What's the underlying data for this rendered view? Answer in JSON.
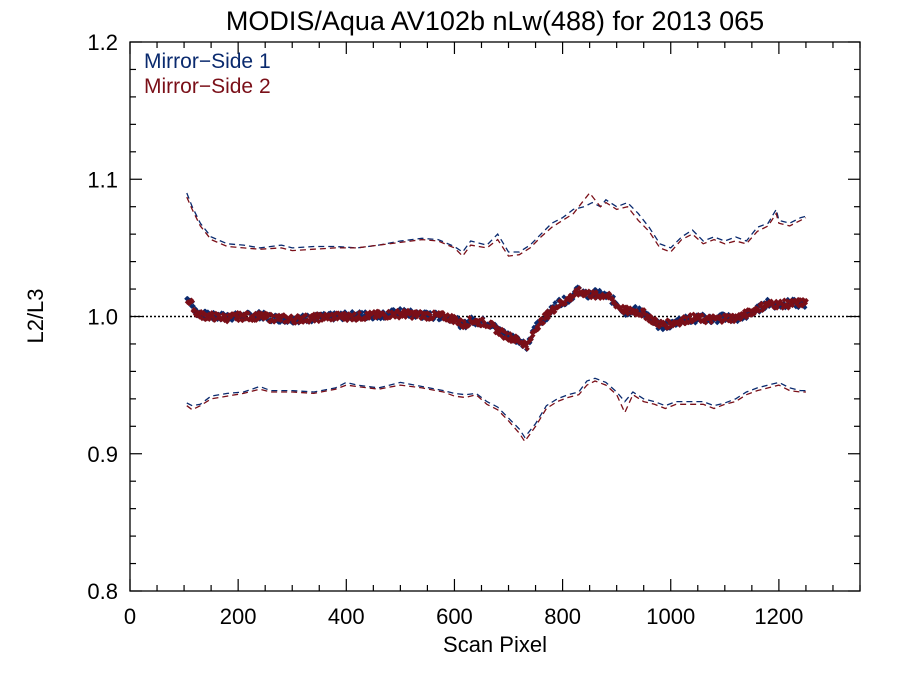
{
  "chart_data": {
    "type": "scatter",
    "title": "MODIS/Aqua AV102b nLw(488) for 2013 065",
    "xlabel": "Scan Pixel",
    "ylabel": "L2/L3",
    "xlim": [
      0,
      1350
    ],
    "ylim": [
      0.8,
      1.2
    ],
    "x_ticks": [
      0,
      200,
      400,
      600,
      800,
      1000,
      1200
    ],
    "x_tick_labels": [
      "0",
      "200",
      "400",
      "600",
      "800",
      "1000",
      "1200"
    ],
    "y_ticks": [
      0.8,
      0.9,
      1.0,
      1.1,
      1.2
    ],
    "y_tick_labels": [
      "0.8",
      "0.9",
      "1.0",
      "1.1",
      "1.2"
    ],
    "reference_line": {
      "y": 1.0,
      "style": "dotted",
      "color": "#000000"
    },
    "legend_position": "top-left",
    "grid": false,
    "series": [
      {
        "name": "Mirror−Side 1",
        "color": "#0a2a6e",
        "mean": [
          [
            105,
            1.013
          ],
          [
            112,
            1.012
          ],
          [
            120,
            1.004
          ],
          [
            130,
            1.002
          ],
          [
            150,
            1.0
          ],
          [
            180,
            1.0
          ],
          [
            200,
            1.0
          ],
          [
            240,
            1.001
          ],
          [
            260,
            0.999
          ],
          [
            300,
            0.998
          ],
          [
            340,
            0.999
          ],
          [
            380,
            1.0
          ],
          [
            420,
            1.001
          ],
          [
            460,
            1.001
          ],
          [
            500,
            1.003
          ],
          [
            540,
            1.001
          ],
          [
            580,
            1.0
          ],
          [
            600,
            0.999
          ],
          [
            615,
            0.993
          ],
          [
            630,
            0.997
          ],
          [
            660,
            0.996
          ],
          [
            690,
            0.988
          ],
          [
            720,
            0.983
          ],
          [
            735,
            0.978
          ],
          [
            750,
            0.993
          ],
          [
            770,
            1.0
          ],
          [
            790,
            1.01
          ],
          [
            810,
            1.012
          ],
          [
            830,
            1.02
          ],
          [
            845,
            1.015
          ],
          [
            860,
            1.017
          ],
          [
            880,
            1.015
          ],
          [
            900,
            1.01
          ],
          [
            915,
            1.003
          ],
          [
            930,
            1.005
          ],
          [
            950,
            1.003
          ],
          [
            970,
            0.995
          ],
          [
            985,
            0.993
          ],
          [
            1000,
            0.994
          ],
          [
            1020,
            0.998
          ],
          [
            1040,
            0.998
          ],
          [
            1060,
            0.999
          ],
          [
            1080,
            0.997
          ],
          [
            1100,
            1.0
          ],
          [
            1120,
            0.998
          ],
          [
            1140,
            1.001
          ],
          [
            1160,
            1.005
          ],
          [
            1180,
            1.01
          ],
          [
            1200,
            1.008
          ],
          [
            1220,
            1.01
          ],
          [
            1240,
            1.009
          ],
          [
            1250,
            1.009
          ]
        ],
        "upper": [
          [
            105,
            1.09
          ],
          [
            115,
            1.08
          ],
          [
            130,
            1.068
          ],
          [
            150,
            1.058
          ],
          [
            180,
            1.053
          ],
          [
            210,
            1.052
          ],
          [
            240,
            1.05
          ],
          [
            280,
            1.052
          ],
          [
            300,
            1.05
          ],
          [
            340,
            1.051
          ],
          [
            380,
            1.051
          ],
          [
            420,
            1.05
          ],
          [
            460,
            1.052
          ],
          [
            500,
            1.055
          ],
          [
            540,
            1.057
          ],
          [
            570,
            1.056
          ],
          [
            600,
            1.051
          ],
          [
            615,
            1.047
          ],
          [
            630,
            1.055
          ],
          [
            660,
            1.052
          ],
          [
            680,
            1.06
          ],
          [
            700,
            1.047
          ],
          [
            720,
            1.047
          ],
          [
            740,
            1.052
          ],
          [
            760,
            1.06
          ],
          [
            780,
            1.068
          ],
          [
            800,
            1.072
          ],
          [
            820,
            1.078
          ],
          [
            840,
            1.08
          ],
          [
            855,
            1.083
          ],
          [
            870,
            1.08
          ],
          [
            880,
            1.085
          ],
          [
            900,
            1.08
          ],
          [
            920,
            1.083
          ],
          [
            940,
            1.075
          ],
          [
            960,
            1.065
          ],
          [
            980,
            1.053
          ],
          [
            1000,
            1.05
          ],
          [
            1020,
            1.058
          ],
          [
            1040,
            1.063
          ],
          [
            1060,
            1.055
          ],
          [
            1080,
            1.058
          ],
          [
            1100,
            1.055
          ],
          [
            1120,
            1.058
          ],
          [
            1140,
            1.055
          ],
          [
            1160,
            1.065
          ],
          [
            1180,
            1.068
          ],
          [
            1195,
            1.078
          ],
          [
            1200,
            1.07
          ],
          [
            1220,
            1.068
          ],
          [
            1240,
            1.072
          ],
          [
            1250,
            1.073
          ]
        ],
        "lower": [
          [
            105,
            0.937
          ],
          [
            115,
            0.935
          ],
          [
            130,
            0.936
          ],
          [
            150,
            0.942
          ],
          [
            180,
            0.944
          ],
          [
            210,
            0.945
          ],
          [
            240,
            0.949
          ],
          [
            260,
            0.946
          ],
          [
            300,
            0.946
          ],
          [
            340,
            0.945
          ],
          [
            380,
            0.948
          ],
          [
            400,
            0.952
          ],
          [
            420,
            0.95
          ],
          [
            460,
            0.948
          ],
          [
            500,
            0.952
          ],
          [
            540,
            0.949
          ],
          [
            580,
            0.946
          ],
          [
            600,
            0.944
          ],
          [
            620,
            0.943
          ],
          [
            640,
            0.944
          ],
          [
            660,
            0.938
          ],
          [
            680,
            0.934
          ],
          [
            700,
            0.926
          ],
          [
            720,
            0.918
          ],
          [
            730,
            0.912
          ],
          [
            750,
            0.922
          ],
          [
            770,
            0.935
          ],
          [
            790,
            0.94
          ],
          [
            810,
            0.943
          ],
          [
            830,
            0.945
          ],
          [
            845,
            0.953
          ],
          [
            860,
            0.955
          ],
          [
            880,
            0.952
          ],
          [
            900,
            0.945
          ],
          [
            915,
            0.938
          ],
          [
            930,
            0.945
          ],
          [
            950,
            0.94
          ],
          [
            970,
            0.938
          ],
          [
            990,
            0.935
          ],
          [
            1010,
            0.938
          ],
          [
            1030,
            0.938
          ],
          [
            1060,
            0.938
          ],
          [
            1080,
            0.935
          ],
          [
            1100,
            0.937
          ],
          [
            1120,
            0.94
          ],
          [
            1140,
            0.945
          ],
          [
            1160,
            0.948
          ],
          [
            1180,
            0.95
          ],
          [
            1200,
            0.952
          ],
          [
            1220,
            0.948
          ],
          [
            1240,
            0.946
          ],
          [
            1250,
            0.946
          ]
        ]
      },
      {
        "name": "Mirror−Side 2",
        "color": "#7a0f18",
        "mean": [
          [
            105,
            1.012
          ],
          [
            112,
            1.01
          ],
          [
            120,
            1.003
          ],
          [
            130,
            1.001
          ],
          [
            150,
            1.0
          ],
          [
            180,
            0.999
          ],
          [
            200,
            1.0
          ],
          [
            240,
            1.0
          ],
          [
            260,
            0.999
          ],
          [
            300,
            0.998
          ],
          [
            340,
            0.999
          ],
          [
            380,
            1.0
          ],
          [
            420,
            1.0
          ],
          [
            460,
            1.001
          ],
          [
            500,
            1.002
          ],
          [
            540,
            1.001
          ],
          [
            580,
            1.0
          ],
          [
            600,
            0.998
          ],
          [
            615,
            0.994
          ],
          [
            630,
            0.997
          ],
          [
            660,
            0.995
          ],
          [
            690,
            0.987
          ],
          [
            720,
            0.982
          ],
          [
            735,
            0.979
          ],
          [
            750,
            0.992
          ],
          [
            770,
            1.001
          ],
          [
            790,
            1.008
          ],
          [
            810,
            1.013
          ],
          [
            830,
            1.018
          ],
          [
            845,
            1.017
          ],
          [
            860,
            1.015
          ],
          [
            880,
            1.016
          ],
          [
            900,
            1.008
          ],
          [
            915,
            1.004
          ],
          [
            930,
            1.004
          ],
          [
            950,
            1.002
          ],
          [
            970,
            0.996
          ],
          [
            985,
            0.994
          ],
          [
            1000,
            0.995
          ],
          [
            1020,
            0.997
          ],
          [
            1040,
            0.999
          ],
          [
            1060,
            0.998
          ],
          [
            1080,
            0.998
          ],
          [
            1100,
            0.999
          ],
          [
            1120,
            0.999
          ],
          [
            1140,
            1.002
          ],
          [
            1160,
            1.006
          ],
          [
            1180,
            1.009
          ],
          [
            1200,
            1.009
          ],
          [
            1220,
            1.009
          ],
          [
            1240,
            1.01
          ],
          [
            1250,
            1.01
          ]
        ],
        "upper": [
          [
            105,
            1.087
          ],
          [
            115,
            1.078
          ],
          [
            130,
            1.066
          ],
          [
            150,
            1.056
          ],
          [
            180,
            1.051
          ],
          [
            210,
            1.05
          ],
          [
            240,
            1.049
          ],
          [
            280,
            1.05
          ],
          [
            300,
            1.048
          ],
          [
            340,
            1.049
          ],
          [
            380,
            1.05
          ],
          [
            420,
            1.05
          ],
          [
            460,
            1.052
          ],
          [
            500,
            1.054
          ],
          [
            540,
            1.056
          ],
          [
            570,
            1.055
          ],
          [
            600,
            1.05
          ],
          [
            615,
            1.044
          ],
          [
            630,
            1.052
          ],
          [
            660,
            1.05
          ],
          [
            680,
            1.056
          ],
          [
            700,
            1.044
          ],
          [
            720,
            1.045
          ],
          [
            740,
            1.05
          ],
          [
            760,
            1.058
          ],
          [
            780,
            1.065
          ],
          [
            800,
            1.07
          ],
          [
            820,
            1.075
          ],
          [
            840,
            1.085
          ],
          [
            850,
            1.09
          ],
          [
            870,
            1.08
          ],
          [
            880,
            1.083
          ],
          [
            900,
            1.078
          ],
          [
            920,
            1.08
          ],
          [
            940,
            1.07
          ],
          [
            960,
            1.062
          ],
          [
            980,
            1.05
          ],
          [
            1000,
            1.047
          ],
          [
            1020,
            1.056
          ],
          [
            1040,
            1.06
          ],
          [
            1060,
            1.053
          ],
          [
            1080,
            1.056
          ],
          [
            1100,
            1.053
          ],
          [
            1120,
            1.055
          ],
          [
            1140,
            1.053
          ],
          [
            1160,
            1.062
          ],
          [
            1180,
            1.066
          ],
          [
            1195,
            1.075
          ],
          [
            1200,
            1.068
          ],
          [
            1220,
            1.066
          ],
          [
            1240,
            1.07
          ],
          [
            1250,
            1.072
          ]
        ],
        "lower": [
          [
            105,
            0.935
          ],
          [
            115,
            0.932
          ],
          [
            130,
            0.935
          ],
          [
            150,
            0.94
          ],
          [
            180,
            0.942
          ],
          [
            210,
            0.944
          ],
          [
            240,
            0.947
          ],
          [
            260,
            0.945
          ],
          [
            300,
            0.945
          ],
          [
            340,
            0.944
          ],
          [
            380,
            0.947
          ],
          [
            400,
            0.95
          ],
          [
            420,
            0.949
          ],
          [
            460,
            0.947
          ],
          [
            500,
            0.95
          ],
          [
            540,
            0.948
          ],
          [
            580,
            0.945
          ],
          [
            600,
            0.942
          ],
          [
            620,
            0.941
          ],
          [
            640,
            0.943
          ],
          [
            660,
            0.936
          ],
          [
            680,
            0.932
          ],
          [
            700,
            0.924
          ],
          [
            720,
            0.915
          ],
          [
            730,
            0.909
          ],
          [
            750,
            0.92
          ],
          [
            770,
            0.933
          ],
          [
            790,
            0.938
          ],
          [
            810,
            0.941
          ],
          [
            830,
            0.943
          ],
          [
            845,
            0.95
          ],
          [
            860,
            0.953
          ],
          [
            880,
            0.95
          ],
          [
            900,
            0.943
          ],
          [
            915,
            0.93
          ],
          [
            930,
            0.943
          ],
          [
            950,
            0.938
          ],
          [
            970,
            0.936
          ],
          [
            990,
            0.933
          ],
          [
            1010,
            0.936
          ],
          [
            1030,
            0.936
          ],
          [
            1060,
            0.936
          ],
          [
            1080,
            0.933
          ],
          [
            1100,
            0.936
          ],
          [
            1120,
            0.938
          ],
          [
            1140,
            0.943
          ],
          [
            1160,
            0.946
          ],
          [
            1180,
            0.948
          ],
          [
            1200,
            0.95
          ],
          [
            1220,
            0.946
          ],
          [
            1240,
            0.945
          ],
          [
            1250,
            0.945
          ]
        ]
      }
    ]
  }
}
